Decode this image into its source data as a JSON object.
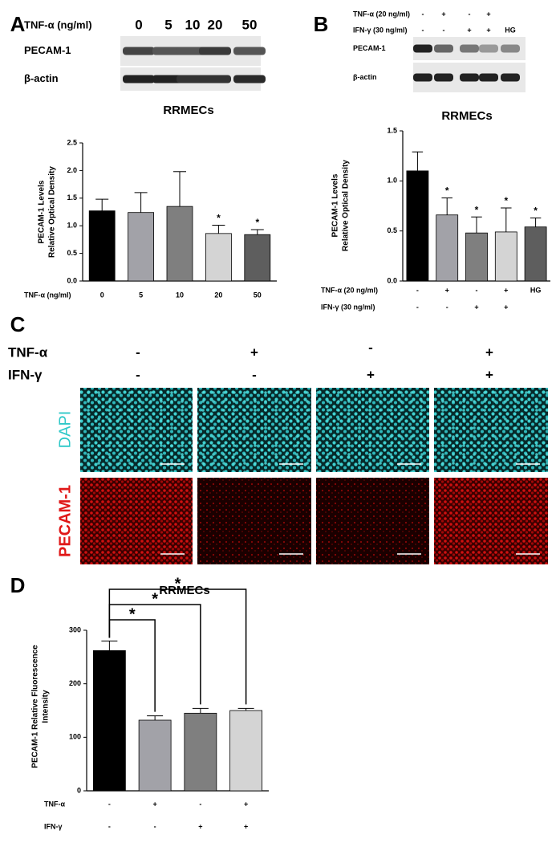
{
  "figure": {
    "panel_a": {
      "letter": "A",
      "treatment_label": "TNF-α (ng/ml)",
      "lanes": [
        "0",
        "5",
        "10",
        "20",
        "50"
      ],
      "rows": [
        "PECAM-1",
        "β-actin"
      ]
    },
    "panel_b": {
      "letter": "B",
      "treatments": [
        {
          "label": "TNF-α (20 ng/ml)",
          "lanes": [
            "-",
            "+",
            "-",
            "+",
            null
          ]
        },
        {
          "label": "IFN-γ (30 ng/ml)",
          "lanes": [
            "-",
            "-",
            "+",
            "+",
            "HG"
          ]
        }
      ],
      "rows": [
        "PECAM-1",
        "β-actin"
      ]
    },
    "panel_c": {
      "letter": "C",
      "treatments": [
        {
          "label": "TNF-α",
          "lanes": [
            "-",
            "+",
            "-",
            "+"
          ]
        },
        {
          "label": "IFN-γ",
          "lanes": [
            "-",
            "-",
            "+",
            "+"
          ]
        }
      ],
      "stains": [
        "DAPI",
        "PECAM-1"
      ]
    },
    "panel_d": {
      "letter": "D"
    }
  },
  "chart_data": [
    {
      "type": "bar",
      "title": "RRMECs",
      "ylabel": [
        "PECAM-1 Levels",
        "Relative Optical Density"
      ],
      "x_label": "TNF-α (ng/ml)",
      "categories": [
        "0",
        "5",
        "10",
        "20",
        "50"
      ],
      "values": [
        1.27,
        1.24,
        1.35,
        0.86,
        0.84
      ],
      "errors": [
        0.21,
        0.36,
        0.63,
        0.15,
        0.09
      ],
      "colors": [
        "#000000",
        "#a2a2a8",
        "#7f7f7f",
        "#d4d4d4",
        "#5e5e5e"
      ],
      "annotations": [
        null,
        null,
        null,
        "*",
        "*"
      ],
      "ylim": [
        0,
        2.5
      ],
      "yticks": [
        {
          "value": 0,
          "label": "0.0"
        },
        0.5,
        {
          "value": 1,
          "label": "1.0"
        },
        1.5,
        {
          "value": 2,
          "label": "2.0"
        },
        2.5
      ]
    },
    {
      "type": "bar",
      "title": "RRMECs",
      "ylabel": [
        "PECAM-1 Levels",
        "Relative Optical Density"
      ],
      "category_rows": [
        {
          "label": "TNF-α (20 ng/ml)",
          "labels": [
            "-",
            "+",
            "-",
            "+",
            "HG"
          ]
        },
        {
          "label": "IFN-γ (30 ng/ml)",
          "labels": [
            "-",
            "-",
            "+",
            "+",
            null
          ]
        }
      ],
      "values": [
        1.1,
        0.66,
        0.48,
        0.49,
        0.54
      ],
      "errors": [
        0.19,
        0.17,
        0.16,
        0.24,
        0.09
      ],
      "colors": [
        "#000000",
        "#a2a2a8",
        "#7f7f7f",
        "#d4d4d4",
        "#5e5e5e"
      ],
      "annotations": [
        null,
        "*",
        "*",
        "*",
        "*"
      ],
      "ylim": [
        0,
        1.5
      ],
      "yticks": [
        {
          "value": 0,
          "label": "0.0"
        },
        0.5,
        {
          "value": 1,
          "label": "1.0"
        },
        1.5
      ]
    },
    {
      "type": "bar",
      "title": "RRMECs",
      "ylabel": [
        "PECAM-1 Relative Fluorescence",
        "Intensity"
      ],
      "category_rows": [
        {
          "label": "TNF-α",
          "labels": [
            "-",
            "+",
            "-",
            "+"
          ]
        },
        {
          "label": "IFN-γ",
          "labels": [
            "-",
            "-",
            "+",
            "+"
          ]
        }
      ],
      "values": [
        262,
        132,
        145,
        150
      ],
      "errors": [
        18,
        8,
        9,
        4
      ],
      "colors": [
        "#000000",
        "#a2a2a8",
        "#7f7f7f",
        "#d4d4d4"
      ],
      "brackets": [
        {
          "label": "*",
          "bars": [
            0,
            1
          ]
        },
        {
          "label": "*",
          "bars": [
            0,
            2
          ]
        },
        {
          "label": "*",
          "bars": [
            0,
            3
          ]
        }
      ],
      "ylim": [
        0,
        300
      ],
      "yticks": [
        0,
        100,
        200,
        300
      ]
    }
  ]
}
